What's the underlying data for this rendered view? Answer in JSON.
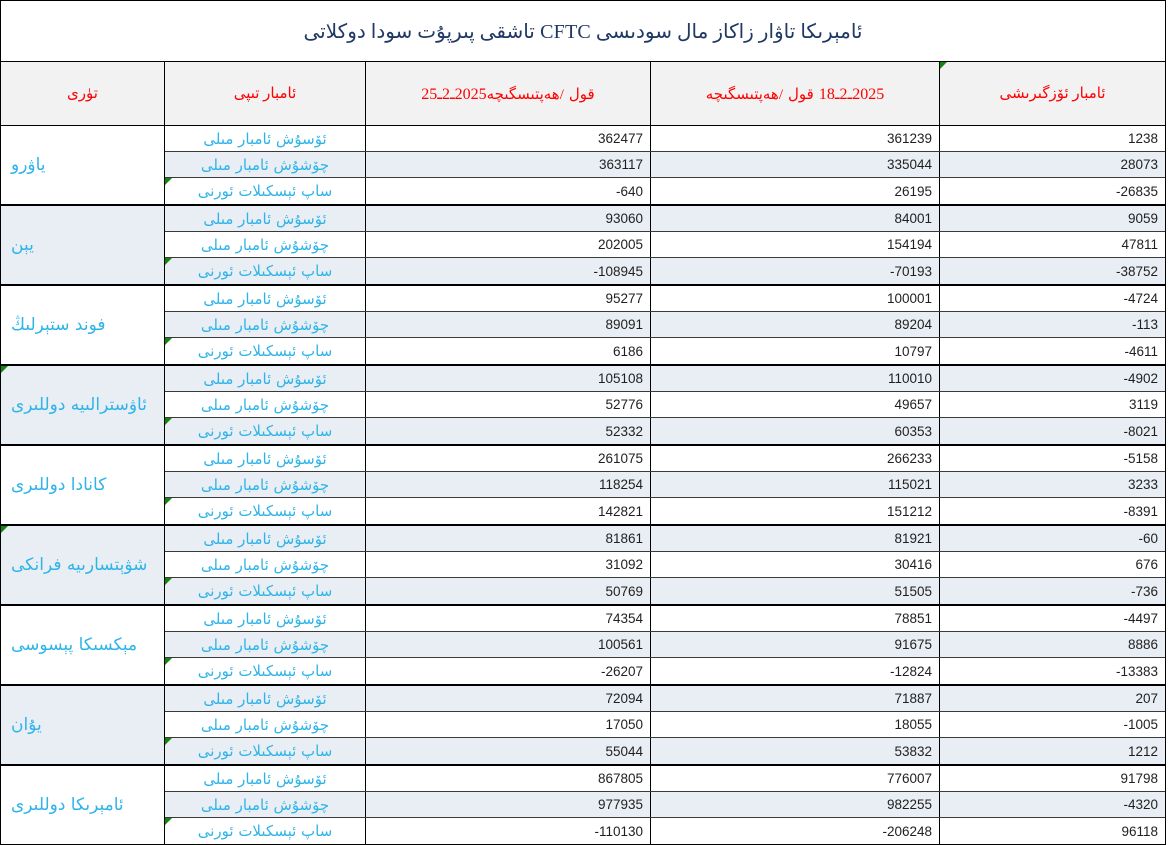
{
  "title": "ئامېرىكا تاۋار زاكاز مال سودىسى CFTC تاشقى پىرپۇت سودا  دوكلاتى",
  "header": {
    "col_type": "تۈرى",
    "col_position_type": "ئامبار تىپى",
    "col_week_current": {
      "date": "25ـ2ـ2025",
      "week_word": "ھەپتىسگىچە",
      "slash": "/",
      "qol": "قول"
    },
    "col_week_prev": {
      "date": "18ـ2ـ2025",
      "week_word": "ھەپتىسگىچە",
      "slash": "/",
      "qol": "قول"
    },
    "col_change": "ئامبار ئۆزگىرىشى"
  },
  "row_labels": [
    "ئۆسۇش ئامبار مىلى",
    "چۆشۇش ئامبار مىلى",
    "ساپ ئېسكىلات ئورنى"
  ],
  "groups": [
    {
      "category": "ياۋرو",
      "rows": [
        [
          362477,
          361239,
          1238
        ],
        [
          363117,
          335044,
          28073
        ],
        [
          -640,
          26195,
          -26835
        ]
      ]
    },
    {
      "category": "يېن",
      "rows": [
        [
          93060,
          84001,
          9059
        ],
        [
          202005,
          154194,
          47811
        ],
        [
          -108945,
          -70193,
          -38752
        ]
      ]
    },
    {
      "category": "فوند ستېرلىڭ",
      "rows": [
        [
          95277,
          100001,
          -4724
        ],
        [
          89091,
          89204,
          -113
        ],
        [
          6186,
          10797,
          -4611
        ]
      ]
    },
    {
      "category": "ئاۋسترالىيە دوللىرى",
      "rows": [
        [
          105108,
          110010,
          -4902
        ],
        [
          52776,
          49657,
          3119
        ],
        [
          52332,
          60353,
          -8021
        ]
      ]
    },
    {
      "category": "كانادا دوللىرى",
      "rows": [
        [
          261075,
          266233,
          -5158
        ],
        [
          118254,
          115021,
          3233
        ],
        [
          142821,
          151212,
          -8391
        ]
      ]
    },
    {
      "category": "شۋېتسارىيە فرانكى",
      "rows": [
        [
          81861,
          81921,
          -60
        ],
        [
          31092,
          30416,
          676
        ],
        [
          50769,
          51505,
          -736
        ]
      ]
    },
    {
      "category": "مېكسىكا پېسوسى",
      "rows": [
        [
          74354,
          78851,
          -4497
        ],
        [
          100561,
          91675,
          8886
        ],
        [
          -26207,
          -12824,
          -13383
        ]
      ]
    },
    {
      "category": "يۇان",
      "rows": [
        [
          72094,
          71887,
          207
        ],
        [
          17050,
          18055,
          -1005
        ],
        [
          55044,
          53832,
          1212
        ]
      ]
    },
    {
      "category": "ئامېرىكا دوللىرى",
      "rows": [
        [
          867805,
          776007,
          91798
        ],
        [
          977935,
          982255,
          -4320
        ],
        [
          -110130,
          -206248,
          96118
        ]
      ]
    }
  ],
  "colors": {
    "title_text": "#1F3864",
    "header_text": "#FF0000",
    "label_text": "#2FB4E8",
    "stripe_fill": "#E9EEF5",
    "header_fill": "#F2F2F2",
    "error_marker_green": "#128412"
  }
}
